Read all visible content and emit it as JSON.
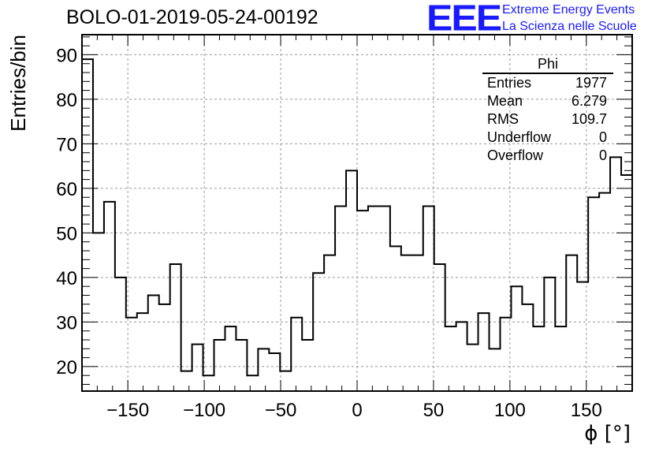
{
  "header": {
    "title": "BOLO-01-2019-05-24-00192",
    "logo": "EEE",
    "logo_line1": "Extreme Energy Events",
    "logo_line2": "La Scienza nelle Scuole"
  },
  "stats_box": {
    "title": "Phi",
    "rows": [
      {
        "label": "Entries",
        "value": "1977"
      },
      {
        "label": "Mean",
        "value": "6.279"
      },
      {
        "label": "RMS",
        "value": "109.7"
      },
      {
        "label": "Underflow",
        "value": "0"
      },
      {
        "label": "Overflow",
        "value": "0"
      }
    ]
  },
  "chart_data": {
    "type": "histogram",
    "xlabel": "ϕ [°]",
    "ylabel": "Entries/bin",
    "xlim": [
      -180,
      180
    ],
    "ylim": [
      14.5,
      94.5
    ],
    "bin_width": 7.2,
    "bin_edges_start": -180,
    "values": [
      89,
      50,
      57,
      40,
      31,
      32,
      36,
      34,
      43,
      19,
      25,
      18,
      26,
      29,
      26,
      18,
      24,
      23,
      19,
      31,
      26,
      41,
      45,
      56,
      64,
      55,
      56,
      56,
      47,
      45,
      45,
      56,
      43,
      29,
      30,
      25,
      32,
      24,
      31,
      38,
      34,
      29,
      40,
      29,
      45,
      39,
      58,
      59,
      67,
      63
    ],
    "x_ticks": [
      -150,
      -100,
      -50,
      0,
      50,
      100,
      150
    ],
    "y_ticks": [
      20,
      30,
      40,
      50,
      60,
      70,
      80,
      90
    ],
    "grid": true,
    "colors": {
      "line": "#000000",
      "grid": "#999999",
      "logo": "#1a1aff"
    }
  }
}
